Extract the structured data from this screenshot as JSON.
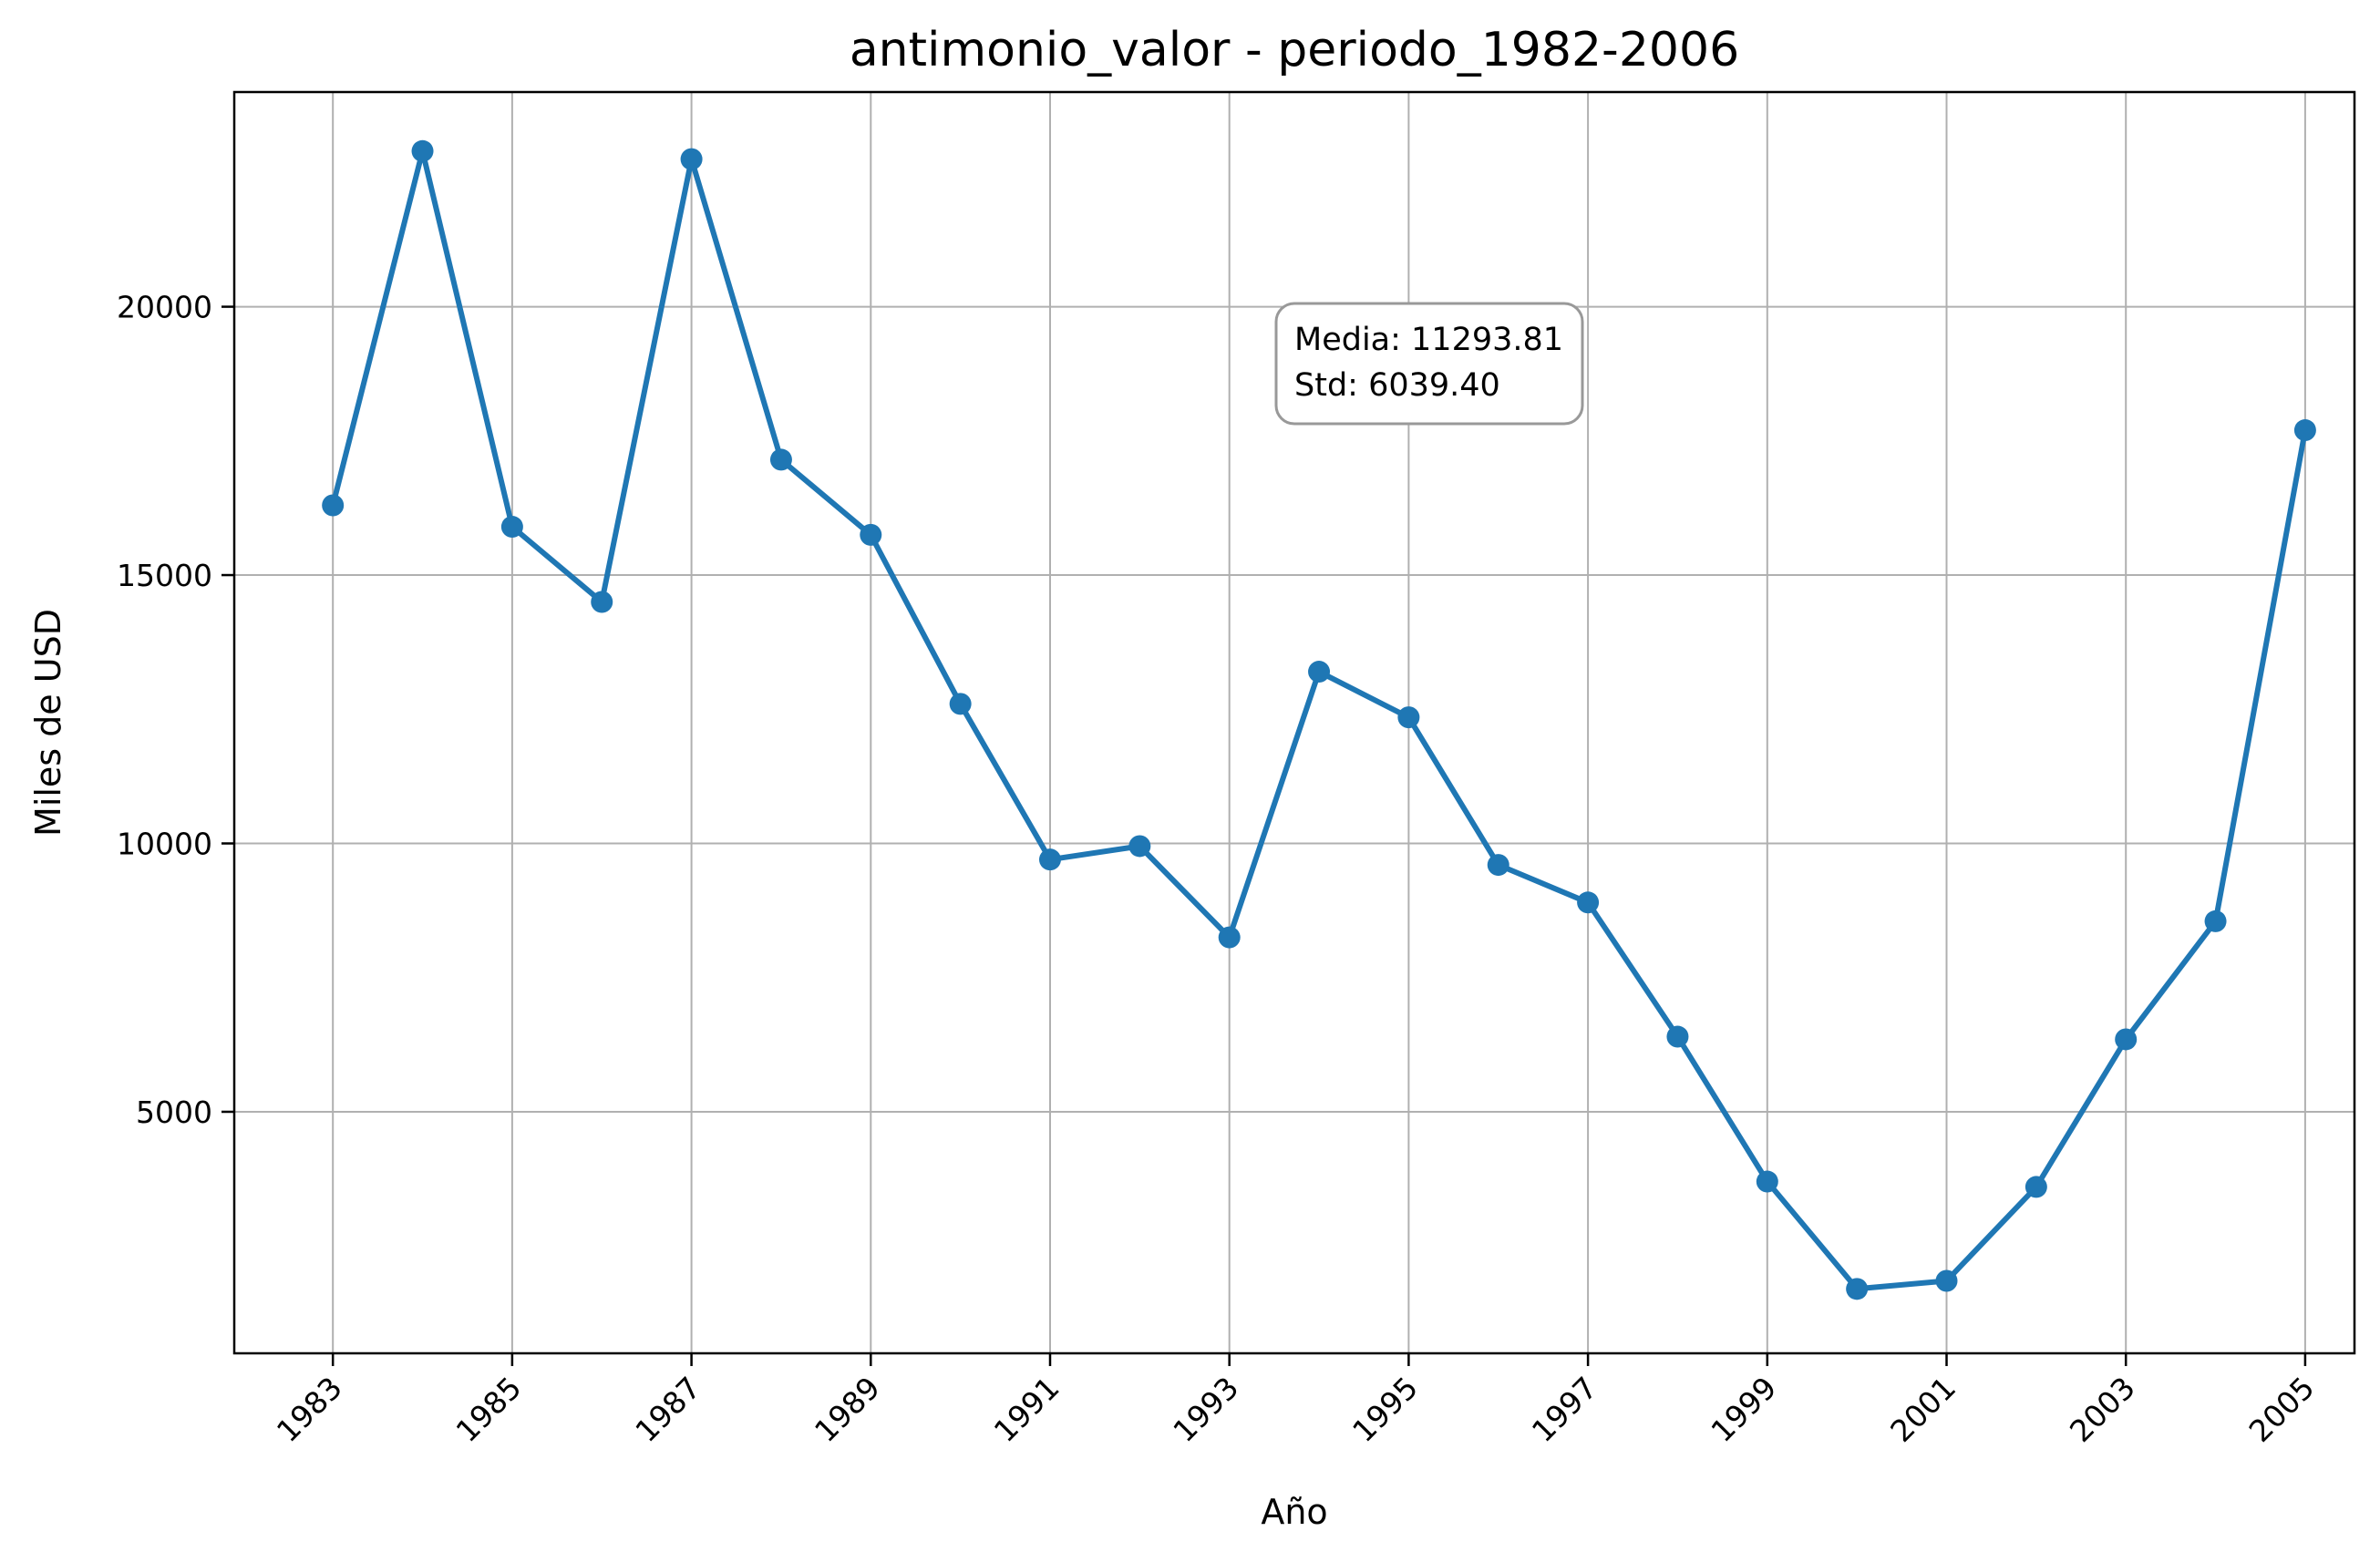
{
  "chart_data": {
    "type": "line",
    "title": "antimonio_valor - periodo_1982-2006",
    "xlabel": "Año",
    "ylabel": "Miles de USD",
    "xlim": [
      1981.9,
      2005.55
    ],
    "ylim": [
      500,
      24000
    ],
    "x_ticks": [
      1983,
      1985,
      1987,
      1989,
      1991,
      1993,
      1995,
      1997,
      1999,
      2001,
      2003,
      2005
    ],
    "y_ticks": [
      5000,
      10000,
      15000,
      20000
    ],
    "grid": true,
    "series": [
      {
        "color": "#1f77b4",
        "x": [
          1983,
          1984,
          1985,
          1986,
          1987,
          1988,
          1989,
          1990,
          1991,
          1992,
          1993,
          1994,
          1995,
          1996,
          1997,
          1998,
          1999,
          2000,
          2001,
          2002,
          2003,
          2004,
          2005
        ],
        "y": [
          16300,
          22900,
          15900,
          14500,
          22750,
          17150,
          15750,
          12600,
          9700,
          9950,
          8250,
          13200,
          12350,
          9600,
          8900,
          6400,
          3700,
          1700,
          1850,
          3600,
          6350,
          8550,
          17700
        ]
      }
    ],
    "annotation": {
      "lines": [
        "Media: 11293.81",
        "Std: 6039.40"
      ]
    }
  }
}
